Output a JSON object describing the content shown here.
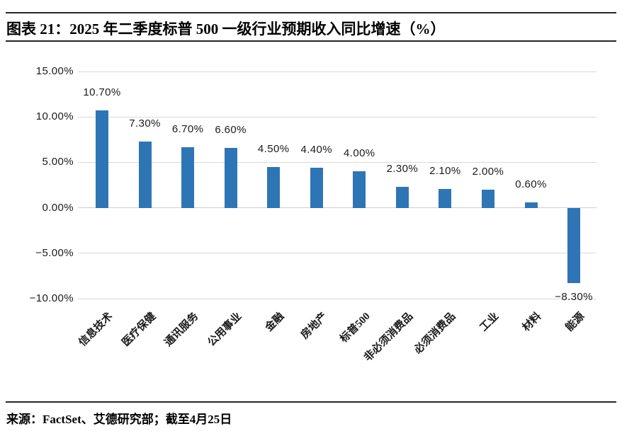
{
  "header": {
    "title": "图表 21：2025 年二季度标普 500 一级行业预期收入同比增速（%）"
  },
  "footer": {
    "source": "来源：FactSet、艾德研究部；截至4月25日"
  },
  "chart_data": {
    "type": "bar",
    "title": "2025 年二季度标普 500 一级行业预期收入同比增速（%）",
    "categories": [
      "信息技术",
      "医疗保健",
      "通讯服务",
      "公用事业",
      "金融",
      "房地产",
      "标普500",
      "非必须消费品",
      "必须消费品",
      "工业",
      "材料",
      "能源"
    ],
    "values": [
      10.7,
      7.3,
      6.7,
      6.6,
      4.5,
      4.4,
      4.0,
      2.3,
      2.1,
      2.0,
      0.6,
      -8.3
    ],
    "value_labels": [
      "10.70%",
      "7.30%",
      "6.70%",
      "6.60%",
      "4.50%",
      "4.40%",
      "4.00%",
      "2.30%",
      "2.10%",
      "2.00%",
      "0.60%",
      "-8.30%"
    ],
    "y_ticks": [
      "15.00%",
      "10.00%",
      "5.00%",
      "0.00%",
      "-5.00%",
      "-10.00%"
    ],
    "y_tick_values": [
      15,
      10,
      5,
      0,
      -5,
      -10
    ],
    "ylim": [
      -10,
      15
    ],
    "xlabel": "",
    "ylabel": "",
    "grid": true,
    "legend_position": "none",
    "bar_color": "#2E75B6",
    "gridline_color": "#D9D9D9",
    "zero_line_color": "#CFCFCF",
    "label_color": "#1a1a1a"
  }
}
